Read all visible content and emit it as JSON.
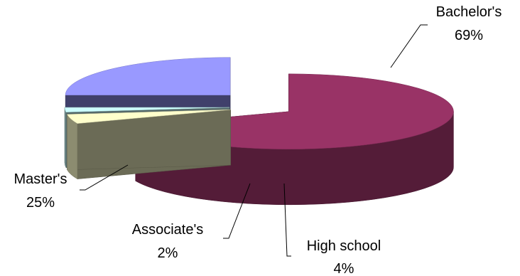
{
  "chart_data": {
    "type": "pie",
    "style": "3d-exploded",
    "title": "",
    "slices": [
      {
        "label": "Bachelor's",
        "value": 69,
        "value_label": "69%",
        "color": "#993366"
      },
      {
        "label": "High school",
        "value": 4,
        "value_label": "4%",
        "color": "#FFFFCC"
      },
      {
        "label": "Associate's",
        "value": 2,
        "value_label": "2%",
        "color": "#CCFFFF"
      },
      {
        "label": "Master's",
        "value": 25,
        "value_label": "25%",
        "color": "#9999FF"
      }
    ]
  }
}
